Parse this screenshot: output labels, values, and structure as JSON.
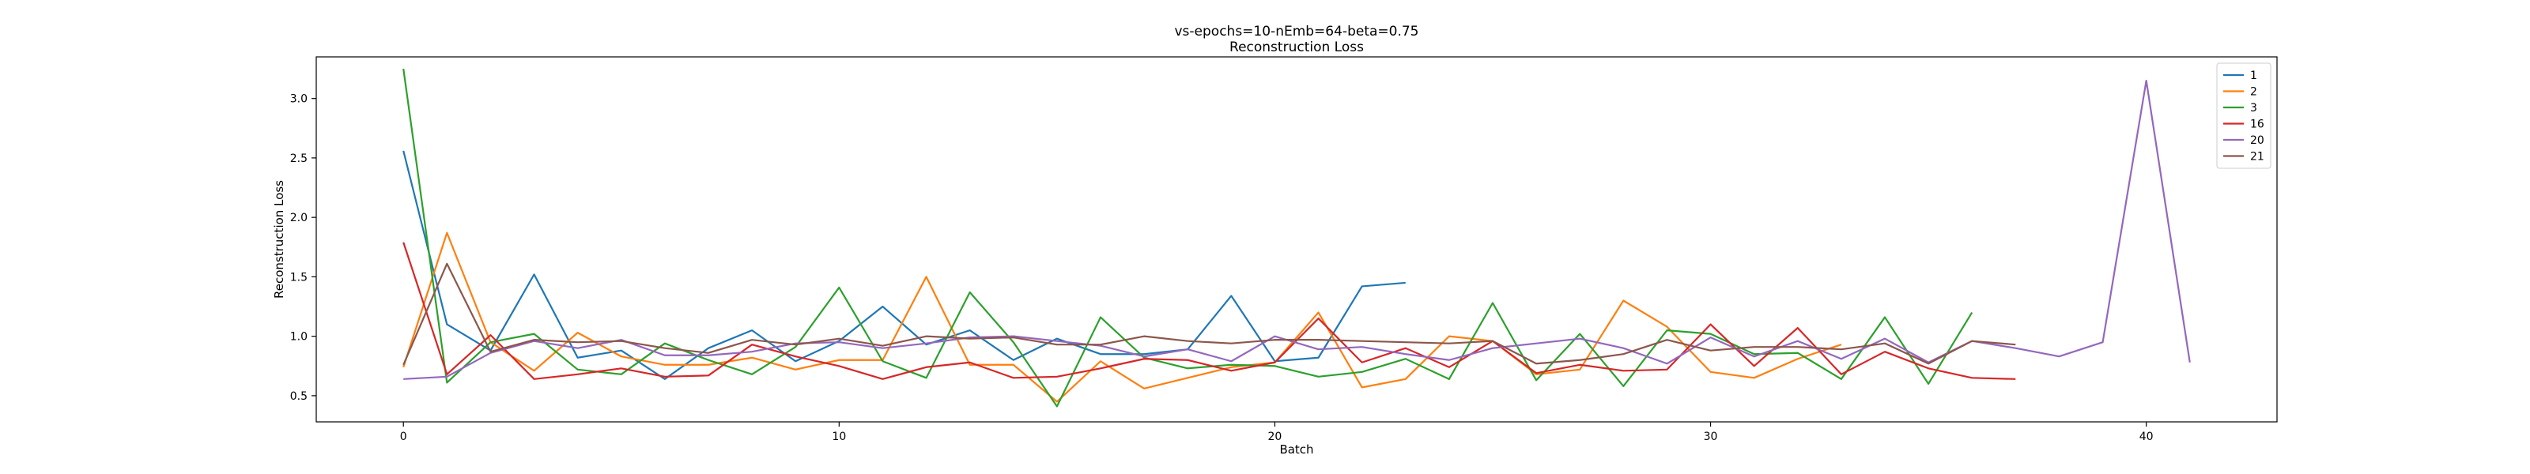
{
  "chart_data": {
    "type": "line",
    "title": "vs-epochs=10-nEmb=64-beta=0.75",
    "subtitle": "Reconstruction Loss",
    "xlabel": "Batch",
    "ylabel": "Reconstruction Loss",
    "xlim": [
      -2,
      43
    ],
    "ylim": [
      0.28,
      3.35
    ],
    "xticks": [
      0,
      10,
      20,
      30,
      40
    ],
    "yticks": [
      0.5,
      1.0,
      1.5,
      2.0,
      2.5,
      3.0
    ],
    "xtick_labels": [
      "0",
      "10",
      "20",
      "30",
      "40"
    ],
    "ytick_labels": [
      "0.5",
      "1.0",
      "1.5",
      "2.0",
      "2.5",
      "3.0"
    ],
    "grid": false,
    "legend_position": "top-right",
    "series": [
      {
        "name": "1",
        "color": "#1f77b4",
        "values": [
          2.56,
          1.1,
          0.88,
          1.52,
          0.82,
          0.88,
          0.64,
          0.9,
          1.05,
          0.79,
          0.96,
          1.25,
          0.93,
          1.05,
          0.8,
          0.98,
          0.85,
          0.85,
          0.89,
          1.34,
          0.79,
          0.82,
          1.42,
          1.45
        ]
      },
      {
        "name": "2",
        "color": "#ff7f0e",
        "values": [
          0.74,
          1.87,
          0.95,
          0.71,
          1.03,
          0.83,
          0.76,
          0.76,
          0.82,
          0.72,
          0.8,
          0.8,
          1.5,
          0.76,
          0.76,
          0.45,
          0.79,
          0.56,
          0.65,
          0.74,
          0.78,
          1.2,
          0.57,
          0.64,
          1.0,
          0.96,
          0.68,
          0.72,
          1.3,
          1.08,
          0.7,
          0.65,
          0.81,
          0.93
        ]
      },
      {
        "name": "3",
        "color": "#2ca02c",
        "values": [
          3.25,
          0.61,
          0.95,
          1.02,
          0.72,
          0.68,
          0.94,
          0.8,
          0.68,
          0.91,
          1.41,
          0.79,
          0.65,
          1.37,
          0.95,
          0.41,
          1.16,
          0.82,
          0.73,
          0.76,
          0.75,
          0.66,
          0.7,
          0.81,
          0.64,
          1.28,
          0.63,
          1.02,
          0.58,
          1.05,
          1.02,
          0.85,
          0.86,
          0.64,
          1.16,
          0.6,
          1.2
        ]
      },
      {
        "name": "16",
        "color": "#d62728",
        "values": [
          1.79,
          0.68,
          1.01,
          0.64,
          0.68,
          0.73,
          0.66,
          0.67,
          0.93,
          0.83,
          0.75,
          0.64,
          0.74,
          0.78,
          0.65,
          0.66,
          0.73,
          0.81,
          0.8,
          0.71,
          0.78,
          1.15,
          0.78,
          0.9,
          0.74,
          0.96,
          0.69,
          0.76,
          0.71,
          0.72,
          1.1,
          0.75,
          1.07,
          0.68,
          0.87,
          0.73,
          0.65,
          0.64
        ]
      },
      {
        "name": "20",
        "color": "#9467bd",
        "values": [
          0.64,
          0.66,
          0.86,
          0.96,
          0.9,
          0.97,
          0.84,
          0.84,
          0.87,
          0.94,
          0.95,
          0.9,
          0.94,
          0.99,
          1.0,
          0.96,
          0.92,
          0.83,
          0.89,
          0.79,
          1.0,
          0.89,
          0.91,
          0.85,
          0.8,
          0.9,
          0.94,
          0.98,
          0.9,
          0.77,
          0.99,
          0.83,
          0.96,
          0.81,
          0.98,
          0.78,
          0.96,
          0.9,
          0.83,
          0.95,
          3.15,
          0.78
        ]
      },
      {
        "name": "21",
        "color": "#8c564b",
        "values": [
          0.76,
          1.61,
          0.87,
          0.97,
          0.95,
          0.96,
          0.9,
          0.86,
          0.97,
          0.93,
          0.98,
          0.92,
          1.0,
          0.98,
          0.99,
          0.93,
          0.93,
          1.0,
          0.96,
          0.94,
          0.97,
          0.97,
          0.96,
          0.95,
          0.94,
          0.96,
          0.77,
          0.8,
          0.85,
          0.97,
          0.88,
          0.91,
          0.91,
          0.89,
          0.94,
          0.77,
          0.96,
          0.93
        ]
      }
    ]
  }
}
